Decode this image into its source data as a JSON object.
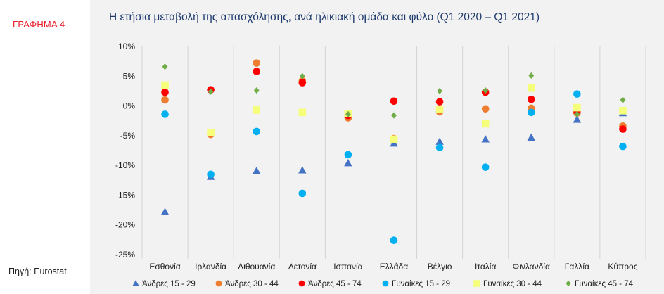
{
  "sidebar": {
    "figure_label": "ΓΡΑΦΗΜΑ 4",
    "source": "Πηγή: Eurostat"
  },
  "chart_data": {
    "type": "scatter",
    "title": "Η ετήσια μεταβολή της απασχόλησης, ανά ηλικιακή ομάδα και φύλο (Q1 2020 – Q1 2021)",
    "categories": [
      "Εσθονία",
      "Ιρλανδία",
      "Λιθουανία",
      "Λετονία",
      "Ισπανία",
      "Ελλάδα",
      "Βέλγιο",
      "Ιταλία",
      "Φινλανδία",
      "Γαλλία",
      "Κύπρος"
    ],
    "ylim": [
      -25,
      10
    ],
    "yticks": [
      10,
      5,
      0,
      -5,
      -10,
      -15,
      -20,
      -25
    ],
    "ytick_labels": [
      "10%",
      "5%",
      "0%",
      "-5%",
      "-10%",
      "-15%",
      "-20%",
      "-25%"
    ],
    "grid": "vertical category separators",
    "legend_position": "bottom",
    "series": [
      {
        "name": "Άνδρες 15 - 29",
        "marker": "triangle",
        "color": "#4472c4",
        "values": [
          -17.8,
          -11.9,
          -10.9,
          -10.8,
          -9.6,
          -6.3,
          -6.0,
          -5.6,
          -5.3,
          -2.3,
          -1.2
        ]
      },
      {
        "name": "Άνδρες 30 - 44",
        "marker": "circle",
        "color": "#ed7d31",
        "values": [
          1.0,
          -4.8,
          7.2,
          4.2,
          -2.0,
          -5.5,
          -1.0,
          -0.5,
          -0.4,
          -1.2,
          -3.4
        ]
      },
      {
        "name": "Άνδρες 45 - 74",
        "marker": "circle",
        "color": "#ff0000",
        "values": [
          2.3,
          2.7,
          5.8,
          3.9,
          -1.6,
          0.8,
          0.7,
          2.3,
          1.1,
          -0.9,
          -3.9
        ]
      },
      {
        "name": "Γυναίκες 15 - 29",
        "marker": "circle",
        "color": "#00b0f0",
        "values": [
          -1.4,
          -11.5,
          -4.3,
          -14.7,
          -8.2,
          -22.6,
          -7.0,
          -10.3,
          -1.1,
          2.0,
          -6.8
        ]
      },
      {
        "name": "Γυναίκες 30 - 44",
        "marker": "square",
        "color": "#f5ff7a",
        "values": [
          3.5,
          -4.5,
          -0.7,
          -1.1,
          -1.3,
          -5.6,
          -0.6,
          -3.0,
          3.0,
          -0.3,
          -0.8
        ]
      },
      {
        "name": "Γυναίκες 45 - 74",
        "marker": "diamond",
        "color": "#70ad47",
        "values": [
          6.6,
          2.4,
          2.6,
          5.0,
          -1.4,
          -1.6,
          2.5,
          2.6,
          5.1,
          -1.4,
          1.0
        ]
      }
    ]
  }
}
